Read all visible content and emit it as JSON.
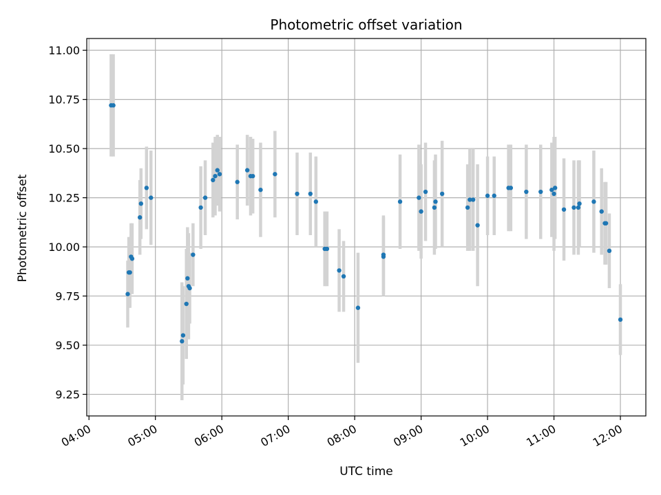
{
  "chart_data": {
    "type": "scatter",
    "title": "Photometric offset variation",
    "xlabel": "UTC time",
    "ylabel": "Photometric offset",
    "grid": true,
    "x_tick_labels": [
      "04:00",
      "05:00",
      "06:00",
      "07:00",
      "08:00",
      "09:00",
      "10:00",
      "11:00",
      "12:00"
    ],
    "y_tick_labels": [
      "9.25",
      "9.50",
      "9.75",
      "10.00",
      "10.25",
      "10.50",
      "10.75",
      "11.00"
    ],
    "y_ticks": [
      9.25,
      9.5,
      9.75,
      10.0,
      10.25,
      10.5,
      10.75,
      11.0
    ],
    "xlim": [
      "03:58",
      "12:23"
    ],
    "ylim": [
      9.14,
      11.06
    ],
    "colors": {
      "points": "#1f77b4",
      "errorbars": "#d3d3d3",
      "grid": "#b0b0b0"
    },
    "series": [
      {
        "x": [
          "04:20",
          "04:22",
          "04:35",
          "04:36",
          "04:37",
          "04:38",
          "04:39",
          "04:46",
          "04:47",
          "04:52",
          "04:56",
          "05:24",
          "05:25",
          "05:28",
          "05:29",
          "05:30",
          "05:31",
          "05:34",
          "05:41",
          "05:45",
          "05:52",
          "05:54",
          "05:56",
          "05:58",
          "06:14",
          "06:23",
          "06:26",
          "06:28",
          "06:35",
          "06:48",
          "07:08",
          "07:20",
          "07:25",
          "07:33",
          "07:35",
          "07:46",
          "07:50",
          "08:03",
          "08:26",
          "08:26",
          "08:41",
          "08:58",
          "09:00",
          "09:04",
          "09:12",
          "09:13",
          "09:19",
          "09:42",
          "09:44",
          "09:47",
          "09:51",
          "10:00",
          "10:06",
          "10:19",
          "10:21",
          "10:35",
          "10:48",
          "10:58",
          "11:00",
          "11:01",
          "11:09",
          "11:18",
          "11:22",
          "11:23",
          "11:36",
          "11:43",
          "11:46",
          "11:47",
          "11:50",
          "12:00"
        ],
        "y": [
          10.72,
          10.72,
          9.76,
          9.87,
          9.87,
          9.95,
          9.94,
          10.15,
          10.22,
          10.3,
          10.25,
          9.52,
          9.55,
          9.71,
          9.84,
          9.8,
          9.79,
          9.96,
          10.2,
          10.25,
          10.34,
          10.36,
          10.39,
          10.37,
          10.33,
          10.39,
          10.36,
          10.36,
          10.29,
          10.37,
          10.27,
          10.27,
          10.23,
          9.99,
          9.99,
          9.88,
          9.85,
          9.69,
          9.95,
          9.96,
          10.23,
          10.25,
          10.18,
          10.28,
          10.2,
          10.23,
          10.27,
          10.2,
          10.24,
          10.24,
          10.11,
          10.26,
          10.26,
          10.3,
          10.3,
          10.28,
          10.28,
          10.29,
          10.27,
          10.3,
          10.19,
          10.2,
          10.2,
          10.22,
          10.23,
          10.18,
          10.12,
          10.12,
          9.98,
          9.63
        ],
        "err": [
          0.26,
          0.26,
          0.17,
          0.18,
          0.18,
          0.17,
          0.18,
          0.19,
          0.18,
          0.21,
          0.24,
          0.3,
          0.25,
          0.28,
          0.26,
          0.27,
          0.18,
          0.16,
          0.21,
          0.19,
          0.19,
          0.2,
          0.18,
          0.19,
          0.19,
          0.18,
          0.2,
          0.19,
          0.24,
          0.22,
          0.21,
          0.21,
          0.23,
          0.19,
          0.19,
          0.21,
          0.18,
          0.28,
          0.2,
          0.2,
          0.24,
          0.27,
          0.24,
          0.25,
          0.24,
          0.24,
          0.27,
          0.22,
          0.26,
          0.26,
          0.31,
          0.2,
          0.2,
          0.22,
          0.22,
          0.24,
          0.24,
          0.24,
          0.29,
          0.26,
          0.26,
          0.24,
          0.24,
          0.22,
          0.26,
          0.22,
          0.21,
          0.21,
          0.19,
          0.18
        ]
      }
    ]
  }
}
